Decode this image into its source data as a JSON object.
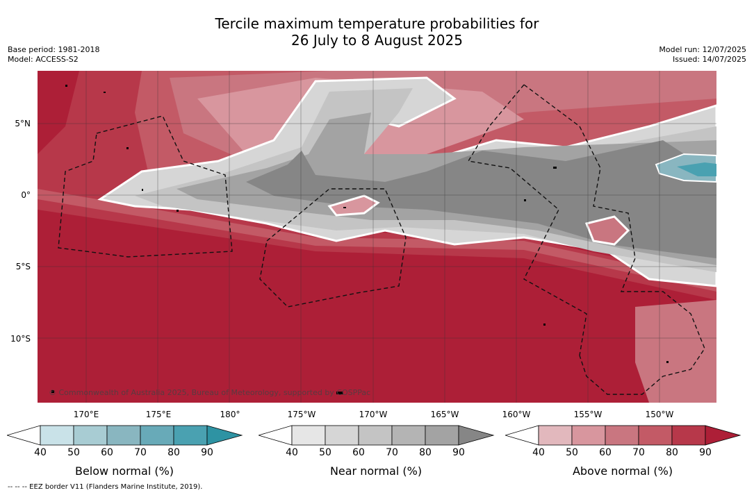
{
  "title": {
    "line1": "Tercile maximum temperature probabilities for",
    "line2": "26 July to 8 August 2025"
  },
  "meta": {
    "base_period": "Base period: 1981-2018",
    "model": "Model: ACCESS-S2",
    "model_run": "Model run: 12/07/2025",
    "issued": "Issued: 14/07/2025"
  },
  "map": {
    "lat_labels": [
      "5°N",
      "0°",
      "5°S",
      "10°S"
    ],
    "lon_labels": [
      "170°E",
      "175°E",
      "180°",
      "175°W",
      "170°W",
      "165°W",
      "160°W",
      "155°W",
      "150°W"
    ],
    "copyright": "© Commonwealth of Australia 2025, Bureau of Meteorology, supported by COSPPac"
  },
  "legend": {
    "below": {
      "label": "Below normal (%)",
      "ticks": [
        "40",
        "50",
        "60",
        "70",
        "80",
        "90"
      ],
      "colors": [
        "#c9e2e8",
        "#a8ccd3",
        "#89b6c0",
        "#68aab8",
        "#4aa1b1",
        "#2e93a3"
      ]
    },
    "near": {
      "label": "Near normal (%)",
      "ticks": [
        "40",
        "50",
        "60",
        "70",
        "80",
        "90"
      ],
      "colors": [
        "#e6e6e6",
        "#d6d6d6",
        "#c4c4c4",
        "#b4b4b4",
        "#a3a3a3",
        "#868686"
      ]
    },
    "above": {
      "label": "Above normal (%)",
      "ticks": [
        "40",
        "50",
        "60",
        "70",
        "80",
        "90"
      ],
      "colors": [
        "#e2b8bd",
        "#d8969e",
        "#c97680",
        "#c35a66",
        "#b7384a",
        "#ad1f37"
      ]
    }
  },
  "footer": "--  --  -- EEZ border V11 (Flanders Marine Institute, 2019)."
}
